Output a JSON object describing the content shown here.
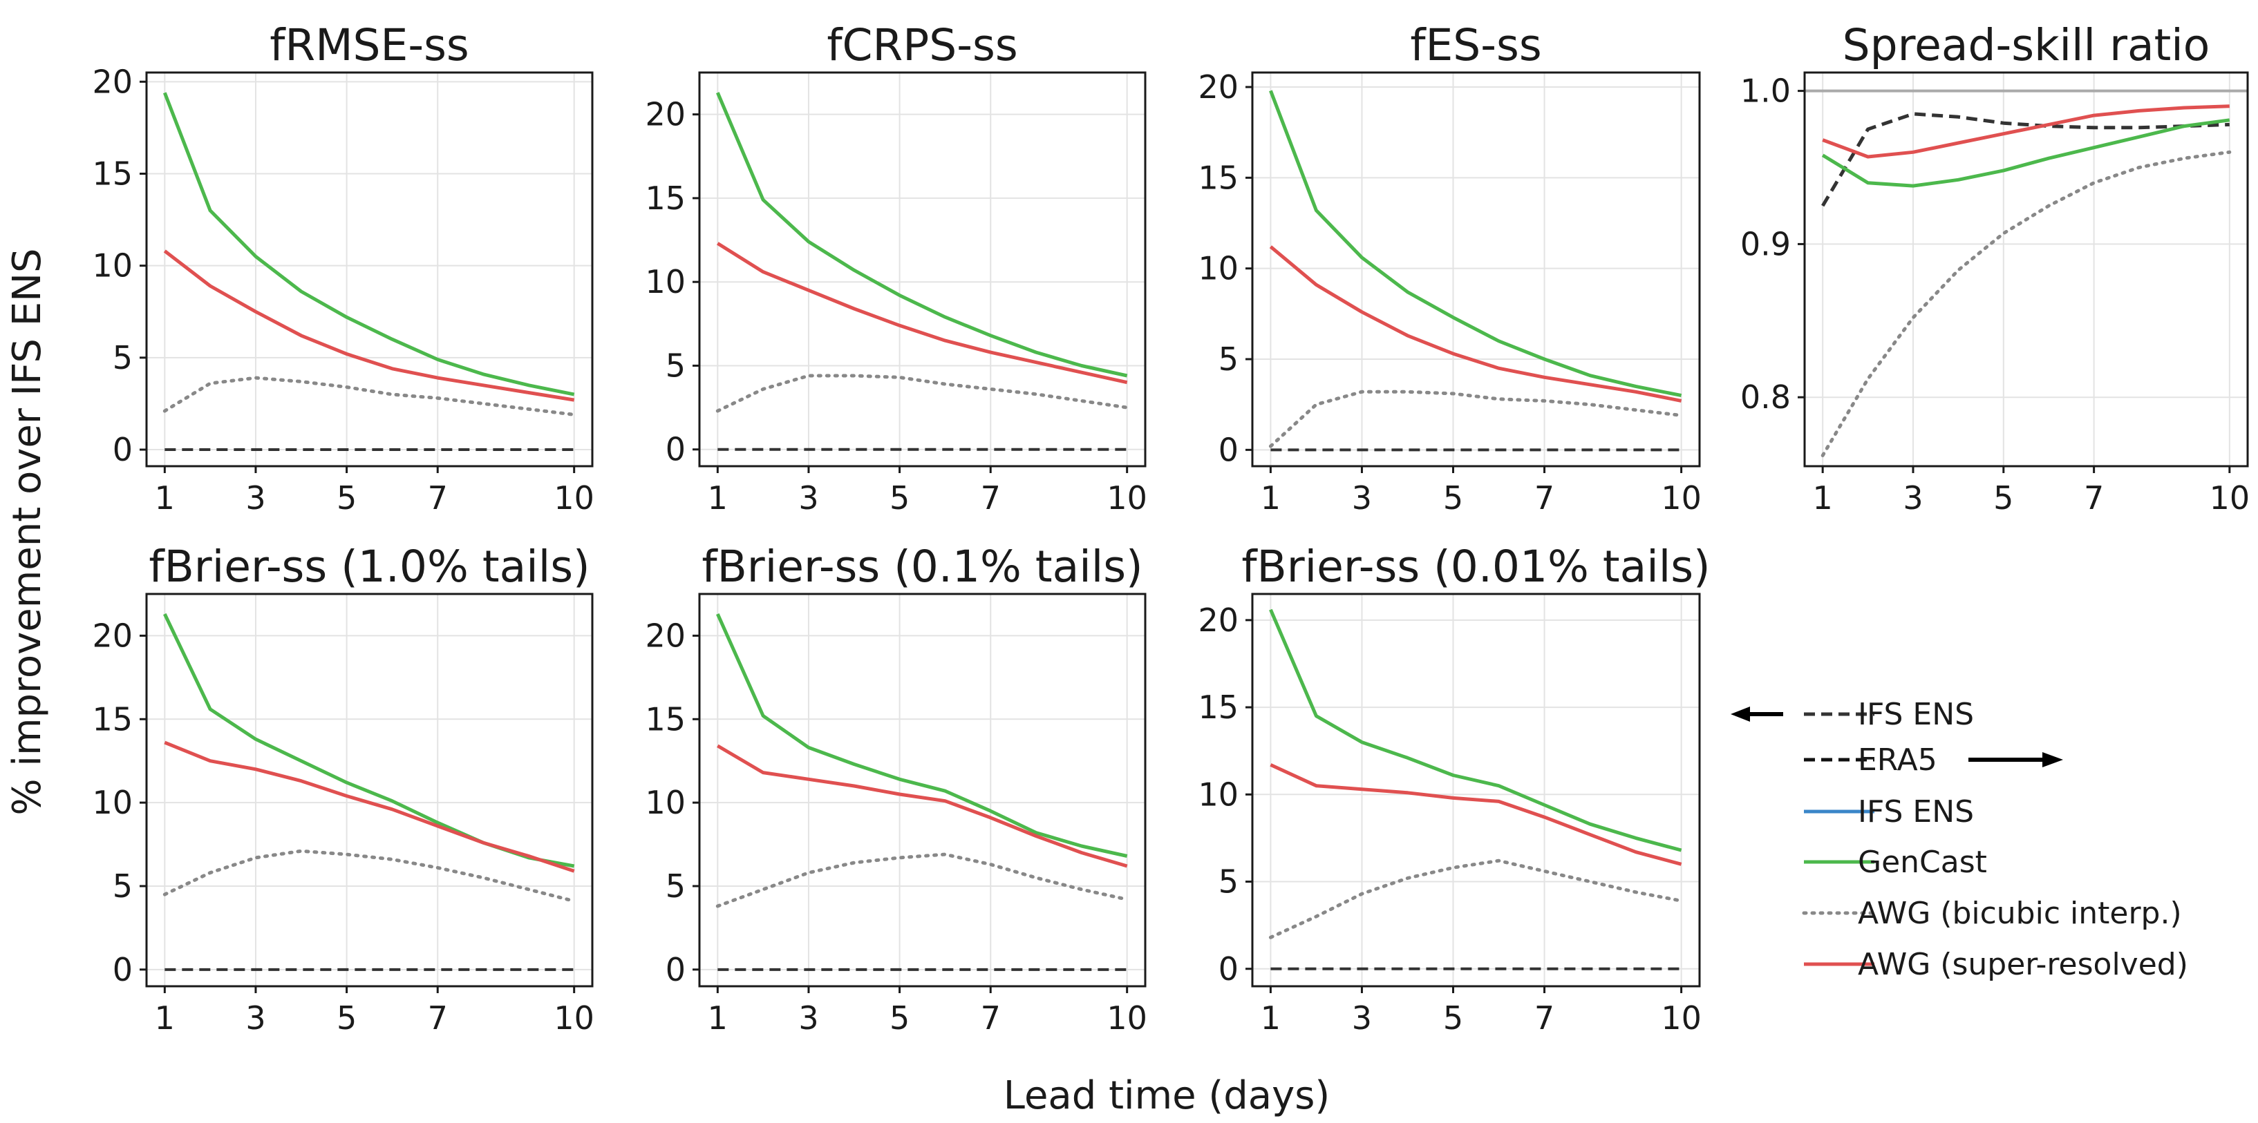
{
  "figure": {
    "ylabel": "% improvement over IFS ENS",
    "xlabel": "Lead time (days)"
  },
  "colors": {
    "IFS ENS": "#3a86c8",
    "GenCast": "#4cb84c",
    "AWG (bicubic interp.)": "#888888",
    "AWG (super-resolved)": "#e05050",
    "baseline": "#333333",
    "reference_line": "#aaaaaa"
  },
  "legend": {
    "arrow_entries": [
      {
        "label": "IFS ENS",
        "arrow": "left"
      },
      {
        "label": "ERA5",
        "arrow": "right"
      }
    ],
    "entries": [
      {
        "label": "IFS ENS",
        "style": "solid"
      },
      {
        "label": "GenCast",
        "style": "solid"
      },
      {
        "label": "AWG (bicubic interp.)",
        "style": "dotted"
      },
      {
        "label": "AWG (super-resolved)",
        "style": "solid"
      }
    ]
  },
  "chart_data": [
    {
      "type": "line",
      "title": "fRMSE-ss",
      "xlabel": "",
      "ylabel": "",
      "xlim": [
        0.6,
        10.4
      ],
      "ylim": [
        -0.9,
        20.5
      ],
      "xticks": [
        1,
        3,
        5,
        7,
        10
      ],
      "yticks": [
        0,
        5,
        10,
        15,
        20
      ],
      "x": [
        1,
        2,
        3,
        4,
        5,
        6,
        7,
        8,
        9,
        10
      ],
      "reference_line": 0,
      "series": [
        {
          "name": "GenCast",
          "values": [
            19.4,
            13.0,
            10.5,
            8.6,
            7.2,
            6.0,
            4.9,
            4.1,
            3.5,
            3.0
          ]
        },
        {
          "name": "AWG (super-resolved)",
          "values": [
            10.8,
            8.9,
            7.5,
            6.2,
            5.2,
            4.4,
            3.9,
            3.5,
            3.1,
            2.7
          ]
        },
        {
          "name": "AWG (bicubic interp.)",
          "values": [
            2.1,
            3.6,
            3.9,
            3.7,
            3.4,
            3.0,
            2.8,
            2.5,
            2.2,
            1.9
          ]
        }
      ]
    },
    {
      "type": "line",
      "title": "fCRPS-ss",
      "xlabel": "",
      "ylabel": "",
      "xlim": [
        0.6,
        10.4
      ],
      "ylim": [
        -1.0,
        22.5
      ],
      "xticks": [
        1,
        3,
        5,
        7,
        10
      ],
      "yticks": [
        0,
        5,
        10,
        15,
        20
      ],
      "x": [
        1,
        2,
        3,
        4,
        5,
        6,
        7,
        8,
        9,
        10
      ],
      "reference_line": 0,
      "series": [
        {
          "name": "GenCast",
          "values": [
            21.3,
            14.9,
            12.4,
            10.7,
            9.2,
            7.9,
            6.8,
            5.8,
            5.0,
            4.4
          ]
        },
        {
          "name": "AWG (super-resolved)",
          "values": [
            12.3,
            10.6,
            9.5,
            8.4,
            7.4,
            6.5,
            5.8,
            5.2,
            4.6,
            4.0
          ]
        },
        {
          "name": "AWG (bicubic interp.)",
          "values": [
            2.3,
            3.6,
            4.4,
            4.4,
            4.3,
            3.9,
            3.6,
            3.3,
            2.9,
            2.5
          ]
        }
      ]
    },
    {
      "type": "line",
      "title": "fES-ss",
      "xlabel": "",
      "ylabel": "",
      "xlim": [
        0.6,
        10.4
      ],
      "ylim": [
        -0.9,
        20.8
      ],
      "xticks": [
        1,
        3,
        5,
        7,
        10
      ],
      "yticks": [
        0,
        5,
        10,
        15,
        20
      ],
      "x": [
        1,
        2,
        3,
        4,
        5,
        6,
        7,
        8,
        9,
        10
      ],
      "reference_line": 0,
      "series": [
        {
          "name": "GenCast",
          "values": [
            19.8,
            13.2,
            10.6,
            8.7,
            7.3,
            6.0,
            5.0,
            4.1,
            3.5,
            3.0
          ]
        },
        {
          "name": "AWG (super-resolved)",
          "values": [
            11.2,
            9.1,
            7.6,
            6.3,
            5.3,
            4.5,
            4.0,
            3.6,
            3.2,
            2.7
          ]
        },
        {
          "name": "AWG (bicubic interp.)",
          "values": [
            0.2,
            2.5,
            3.2,
            3.2,
            3.1,
            2.8,
            2.7,
            2.5,
            2.2,
            1.9
          ]
        }
      ]
    },
    {
      "type": "line",
      "title": "Spread-skill ratio",
      "xlabel": "",
      "ylabel": "",
      "xlim": [
        0.6,
        10.4
      ],
      "ylim": [
        0.755,
        1.012
      ],
      "xticks": [
        1,
        3,
        5,
        7,
        10
      ],
      "yticks": [
        0.8,
        0.9,
        1.0
      ],
      "ytick_labels": [
        "0.8",
        "0.9",
        "1.0"
      ],
      "x": [
        1,
        2,
        3,
        4,
        5,
        6,
        7,
        8,
        9,
        10
      ],
      "reference_line": 1.0,
      "series": [
        {
          "name": "IFS ENS",
          "values": [
            0.925,
            0.975,
            0.985,
            0.983,
            0.979,
            0.977,
            0.976,
            0.976,
            0.977,
            0.978
          ]
        },
        {
          "name": "GenCast",
          "values": [
            0.958,
            0.94,
            0.938,
            0.942,
            0.948,
            0.956,
            0.963,
            0.97,
            0.977,
            0.981
          ]
        },
        {
          "name": "AWG (super-resolved)",
          "values": [
            0.968,
            0.957,
            0.96,
            0.966,
            0.972,
            0.978,
            0.984,
            0.987,
            0.989,
            0.99
          ]
        },
        {
          "name": "AWG (bicubic interp.)",
          "values": [
            0.762,
            0.812,
            0.852,
            0.883,
            0.907,
            0.925,
            0.94,
            0.95,
            0.956,
            0.96
          ]
        }
      ]
    },
    {
      "type": "line",
      "title": "fBrier-ss (1.0% tails)",
      "xlabel": "",
      "ylabel": "",
      "xlim": [
        0.6,
        10.4
      ],
      "ylim": [
        -1.0,
        22.5
      ],
      "xticks": [
        1,
        3,
        5,
        7,
        10
      ],
      "yticks": [
        0,
        5,
        10,
        15,
        20
      ],
      "x": [
        1,
        2,
        3,
        4,
        5,
        6,
        7,
        8,
        9,
        10
      ],
      "reference_line": 0,
      "series": [
        {
          "name": "GenCast",
          "values": [
            21.3,
            15.6,
            13.8,
            12.5,
            11.2,
            10.1,
            8.8,
            7.6,
            6.7,
            6.2
          ]
        },
        {
          "name": "AWG (super-resolved)",
          "values": [
            13.6,
            12.5,
            12.0,
            11.3,
            10.4,
            9.6,
            8.6,
            7.6,
            6.8,
            5.9
          ]
        },
        {
          "name": "AWG (bicubic interp.)",
          "values": [
            4.5,
            5.8,
            6.7,
            7.1,
            6.9,
            6.6,
            6.1,
            5.5,
            4.8,
            4.1
          ]
        }
      ]
    },
    {
      "type": "line",
      "title": "fBrier-ss (0.1% tails)",
      "xlabel": "",
      "ylabel": "",
      "xlim": [
        0.6,
        10.4
      ],
      "ylim": [
        -1.0,
        22.5
      ],
      "xticks": [
        1,
        3,
        5,
        7,
        10
      ],
      "yticks": [
        0,
        5,
        10,
        15,
        20
      ],
      "x": [
        1,
        2,
        3,
        4,
        5,
        6,
        7,
        8,
        9,
        10
      ],
      "reference_line": 0,
      "series": [
        {
          "name": "GenCast",
          "values": [
            21.3,
            15.2,
            13.3,
            12.3,
            11.4,
            10.7,
            9.5,
            8.2,
            7.4,
            6.8
          ]
        },
        {
          "name": "AWG (super-resolved)",
          "values": [
            13.4,
            11.8,
            11.4,
            11.0,
            10.5,
            10.1,
            9.1,
            8.0,
            7.0,
            6.2
          ]
        },
        {
          "name": "AWG (bicubic interp.)",
          "values": [
            3.8,
            4.8,
            5.8,
            6.4,
            6.7,
            6.9,
            6.3,
            5.5,
            4.8,
            4.2
          ]
        }
      ]
    },
    {
      "type": "line",
      "title": "fBrier-ss (0.01% tails)",
      "xlabel": "",
      "ylabel": "",
      "xlim": [
        0.6,
        10.4
      ],
      "ylim": [
        -1.0,
        21.5
      ],
      "xticks": [
        1,
        3,
        5,
        7,
        10
      ],
      "yticks": [
        0,
        5,
        10,
        15,
        20
      ],
      "x": [
        1,
        2,
        3,
        4,
        5,
        6,
        7,
        8,
        9,
        10
      ],
      "reference_line": 0,
      "series": [
        {
          "name": "GenCast",
          "values": [
            20.6,
            14.5,
            13.0,
            12.1,
            11.1,
            10.5,
            9.4,
            8.3,
            7.5,
            6.8
          ]
        },
        {
          "name": "AWG (super-resolved)",
          "values": [
            11.7,
            10.5,
            10.3,
            10.1,
            9.8,
            9.6,
            8.7,
            7.7,
            6.7,
            6.0
          ]
        },
        {
          "name": "AWG (bicubic interp.)",
          "values": [
            1.8,
            3.0,
            4.3,
            5.2,
            5.8,
            6.2,
            5.6,
            5.0,
            4.4,
            3.9
          ]
        }
      ]
    }
  ]
}
